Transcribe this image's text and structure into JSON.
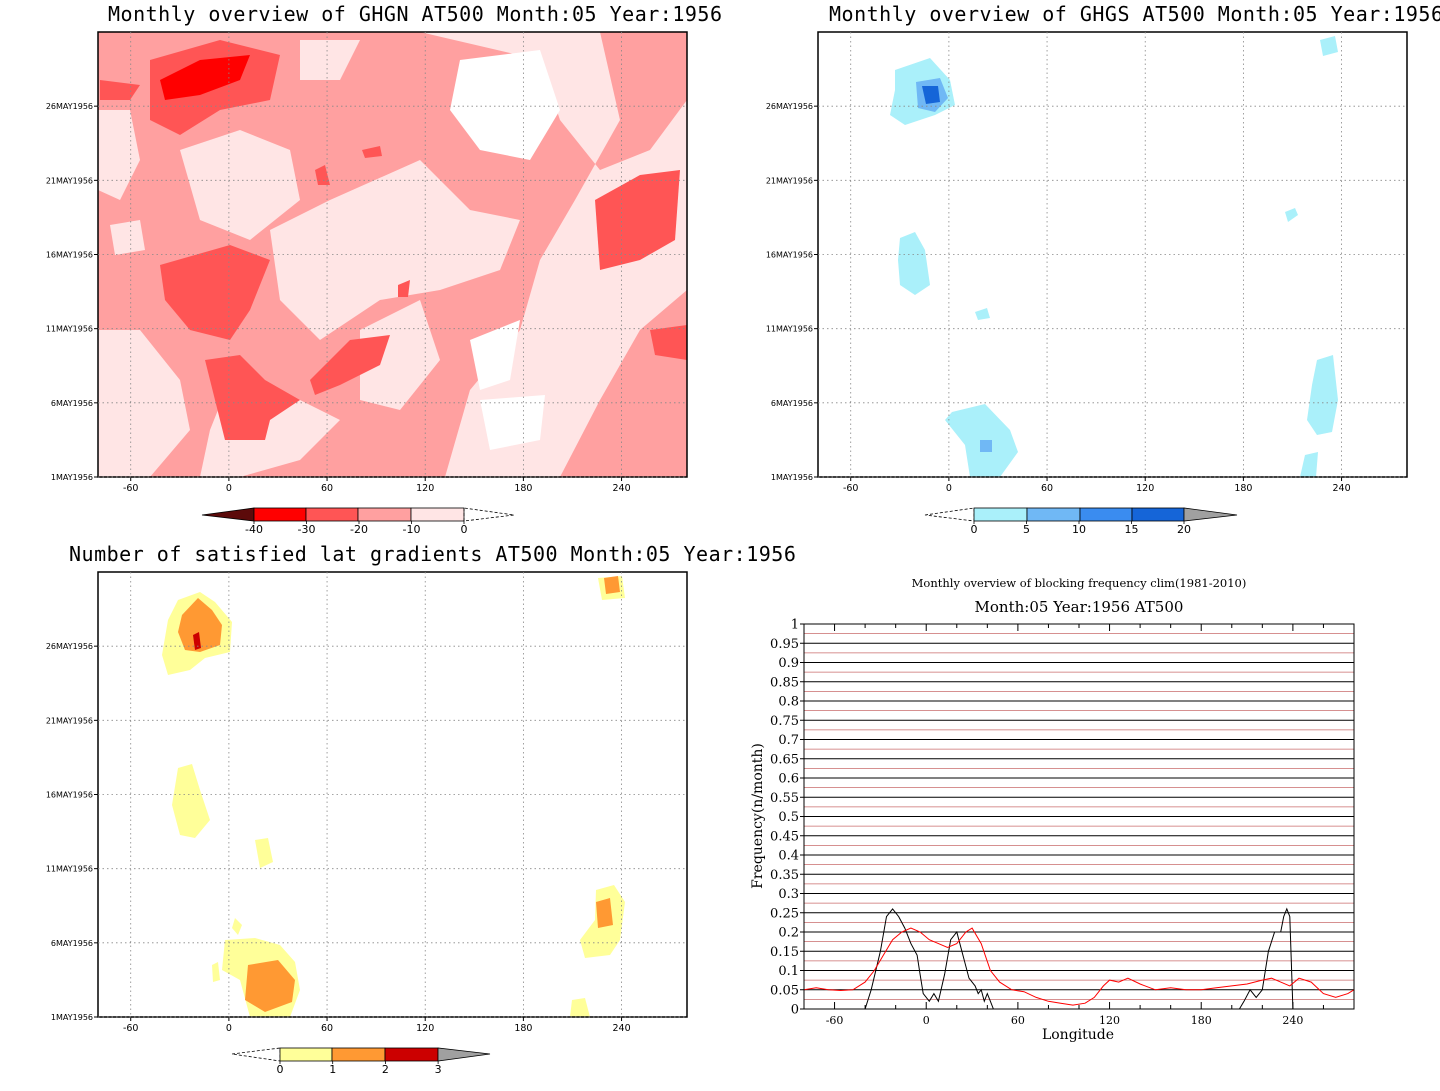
{
  "panels": {
    "ghgn": {
      "title": "Monthly overview of GHGN AT500 Month:05 Year:1956",
      "x_ticks": [
        "-60",
        "0",
        "60",
        "120",
        "180",
        "240"
      ],
      "y_ticks": [
        "1MAY1956",
        "6MAY1956",
        "11MAY1956",
        "16MAY1956",
        "21MAY1956",
        "26MAY1956"
      ],
      "colorbar": {
        "labels": [
          "-40",
          "-30",
          "-20",
          "-10",
          "0"
        ],
        "colors": [
          "#5c0a0a",
          "#ff0000",
          "#ff5555",
          "#ffa0a0",
          "#ffe5e5"
        ]
      }
    },
    "ghgs": {
      "title": "Monthly overview of GHGS AT500 Month:05 Year:1956",
      "x_ticks": [
        "-60",
        "0",
        "60",
        "120",
        "180",
        "240"
      ],
      "y_ticks": [
        "1MAY1956",
        "6MAY1956",
        "11MAY1956",
        "16MAY1956",
        "21MAY1956",
        "26MAY1956"
      ],
      "colorbar": {
        "labels": [
          "0",
          "5",
          "10",
          "15",
          "20"
        ],
        "colors": [
          "#aaf0fa",
          "#70b8f5",
          "#3a8cf0",
          "#1565d8",
          "#a0a0a0"
        ]
      }
    },
    "lat": {
      "title": "Number of satisfied lat gradients AT500 Month:05 Year:1956",
      "x_ticks": [
        "-60",
        "0",
        "60",
        "120",
        "180",
        "240"
      ],
      "y_ticks": [
        "1MAY1956",
        "6MAY1956",
        "11MAY1956",
        "16MAY1956",
        "21MAY1956",
        "26MAY1956"
      ],
      "colorbar": {
        "labels": [
          "0",
          "1",
          "2",
          "3"
        ],
        "colors": [
          "#ffff99",
          "#ff9933",
          "#cc0000",
          "#a0a0a0"
        ]
      }
    }
  },
  "freq": {
    "title": "Monthly overview of blocking frequency clim(1981-2010)",
    "subtitle": "Month:05 Year:1956  AT500",
    "xlabel": "Longitude",
    "ylabel": "Frequency(n/month)"
  },
  "chart_data": {
    "type": "line",
    "title": "Monthly overview of blocking frequency clim(1981-2010)",
    "subtitle": "Month:05 Year:1956  AT500",
    "xlabel": "Longitude",
    "ylabel": "Frequency(n/month)",
    "xlim": [
      -80,
      280
    ],
    "ylim": [
      0,
      1
    ],
    "x_ticks": [
      -60,
      0,
      60,
      120,
      180,
      240
    ],
    "y_ticks": [
      0,
      0.05,
      0.1,
      0.15,
      0.2,
      0.25,
      0.3,
      0.35,
      0.4,
      0.45,
      0.5,
      0.55,
      0.6,
      0.65,
      0.7,
      0.75,
      0.8,
      0.85,
      0.9,
      0.95,
      1
    ],
    "grid": true,
    "series": [
      {
        "color": "#000000",
        "x": [
          -80,
          -40,
          -36,
          -30,
          -26,
          -22,
          -18,
          -14,
          -10,
          -6,
          -4,
          -2,
          2,
          5,
          8,
          12,
          16,
          20,
          24,
          28,
          32,
          34,
          36,
          38,
          40,
          42,
          44,
          50,
          205,
          208,
          212,
          216,
          220,
          224,
          228,
          232,
          234,
          236,
          238,
          240,
          280
        ],
        "y": [
          0,
          0,
          0.05,
          0.15,
          0.24,
          0.26,
          0.24,
          0.21,
          0.17,
          0.14,
          0.09,
          0.04,
          0.02,
          0.04,
          0.02,
          0.09,
          0.18,
          0.2,
          0.14,
          0.08,
          0.06,
          0.04,
          0.05,
          0.02,
          0.04,
          0.02,
          0,
          0,
          0,
          0.02,
          0.05,
          0.03,
          0.05,
          0.15,
          0.2,
          0.2,
          0.24,
          0.26,
          0.24,
          0,
          0
        ]
      },
      {
        "color": "#ff0000",
        "x": [
          -80,
          -72,
          -64,
          -56,
          -48,
          -40,
          -34,
          -28,
          -22,
          -16,
          -10,
          -4,
          2,
          8,
          14,
          20,
          26,
          30,
          36,
          42,
          48,
          56,
          64,
          72,
          80,
          88,
          96,
          104,
          110,
          116,
          120,
          126,
          132,
          140,
          150,
          160,
          170,
          180,
          190,
          200,
          210,
          220,
          226,
          232,
          238,
          244,
          252,
          260,
          268,
          276,
          280
        ],
        "y": [
          0.05,
          0.055,
          0.05,
          0.048,
          0.05,
          0.07,
          0.1,
          0.14,
          0.18,
          0.2,
          0.21,
          0.2,
          0.18,
          0.17,
          0.16,
          0.17,
          0.2,
          0.21,
          0.17,
          0.1,
          0.07,
          0.05,
          0.045,
          0.03,
          0.02,
          0.015,
          0.01,
          0.015,
          0.03,
          0.06,
          0.075,
          0.07,
          0.08,
          0.065,
          0.05,
          0.055,
          0.05,
          0.05,
          0.055,
          0.06,
          0.065,
          0.075,
          0.08,
          0.07,
          0.06,
          0.08,
          0.07,
          0.04,
          0.03,
          0.04,
          0.05
        ]
      }
    ]
  }
}
